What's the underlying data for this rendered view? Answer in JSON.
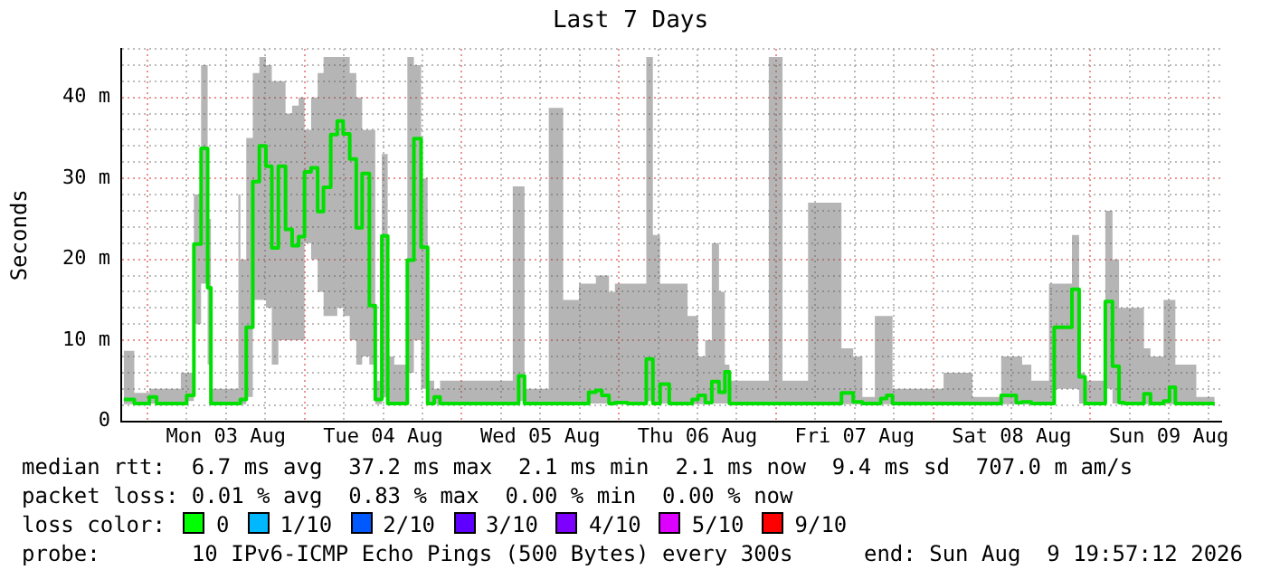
{
  "chart_data": {
    "type": "step",
    "title": "Last 7 Days",
    "ylabel": "Seconds",
    "xlim": [
      "2026-08-02T20:00",
      "2026-08-09T20:00"
    ],
    "xticks": [
      {
        "value": "2026-08-03T00:00",
        "label": null
      },
      {
        "value": "2026-08-03T06:00",
        "label": null
      },
      {
        "value": "2026-08-03T12:00",
        "label": "Mon 03 Aug"
      },
      {
        "value": "2026-08-03T18:00",
        "label": null
      },
      {
        "value": "2026-08-04T00:00",
        "label": null
      },
      {
        "value": "2026-08-04T06:00",
        "label": null
      },
      {
        "value": "2026-08-04T12:00",
        "label": "Tue 04 Aug"
      },
      {
        "value": "2026-08-04T18:00",
        "label": null
      },
      {
        "value": "2026-08-05T00:00",
        "label": null
      },
      {
        "value": "2026-08-05T06:00",
        "label": null
      },
      {
        "value": "2026-08-05T12:00",
        "label": "Wed 05 Aug"
      },
      {
        "value": "2026-08-05T18:00",
        "label": null
      },
      {
        "value": "2026-08-06T00:00",
        "label": null
      },
      {
        "value": "2026-08-06T06:00",
        "label": null
      },
      {
        "value": "2026-08-06T12:00",
        "label": "Thu 06 Aug"
      },
      {
        "value": "2026-08-06T18:00",
        "label": null
      },
      {
        "value": "2026-08-07T00:00",
        "label": null
      },
      {
        "value": "2026-08-07T06:00",
        "label": null
      },
      {
        "value": "2026-08-07T12:00",
        "label": "Fri 07 Aug"
      },
      {
        "value": "2026-08-07T18:00",
        "label": null
      },
      {
        "value": "2026-08-08T00:00",
        "label": null
      },
      {
        "value": "2026-08-08T06:00",
        "label": null
      },
      {
        "value": "2026-08-08T12:00",
        "label": "Sat 08 Aug"
      },
      {
        "value": "2026-08-08T18:00",
        "label": null
      },
      {
        "value": "2026-08-09T00:00",
        "label": null
      },
      {
        "value": "2026-08-09T06:00",
        "label": null
      },
      {
        "value": "2026-08-09T12:00",
        "label": "Sun 09 Aug"
      },
      {
        "value": "2026-08-09T18:00",
        "label": null
      }
    ],
    "ylim": [
      0,
      46
    ],
    "yticks": [
      0,
      {
        "value": 2,
        "label": null
      },
      {
        "value": 4,
        "label": null
      },
      {
        "value": 6,
        "label": null
      },
      {
        "value": 8,
        "label": null
      },
      {
        "value": 10,
        "label": "10 m"
      },
      {
        "value": 12,
        "label": null
      },
      {
        "value": 14,
        "label": null
      },
      {
        "value": 16,
        "label": null
      },
      {
        "value": 18,
        "label": null
      },
      {
        "value": 20,
        "label": "20 m"
      },
      {
        "value": 22,
        "label": null
      },
      {
        "value": 24,
        "label": null
      },
      {
        "value": 26,
        "label": null
      },
      {
        "value": 28,
        "label": null
      },
      {
        "value": 30,
        "label": "30 m"
      },
      {
        "value": 32,
        "label": null
      },
      {
        "value": 34,
        "label": null
      },
      {
        "value": 36,
        "label": null
      },
      {
        "value": 38,
        "label": null
      },
      {
        "value": 40,
        "label": "40 m"
      },
      {
        "value": 42,
        "label": null
      },
      {
        "value": 44,
        "label": null
      },
      {
        "value": 46,
        "label": null
      }
    ],
    "grid": true,
    "legend": false,
    "series": [
      {
        "color": "#00e000",
        "x": [
          "2026-08-02T20:24",
          "2026-08-02T22:00",
          "2026-08-03T00:18",
          "2026-08-03T01:24",
          "2026-08-03T05:06",
          "2026-08-03T06:00",
          "2026-08-03T07:06",
          "2026-08-03T08:12",
          "2026-08-03T09:12",
          "2026-08-03T09:42",
          "2026-08-03T13:54",
          "2026-08-03T14:12",
          "2026-08-03T15:06",
          "2026-08-03T16:06",
          "2026-08-03T17:06",
          "2026-08-03T18:06",
          "2026-08-03T19:00",
          "2026-08-03T20:00",
          "2026-08-03T21:06",
          "2026-08-03T22:06",
          "2026-08-03T23:06",
          "2026-08-04T00:00",
          "2026-08-04T01:00",
          "2026-08-04T02:00",
          "2026-08-04T02:54",
          "2026-08-04T04:00",
          "2026-08-04T05:00",
          "2026-08-04T05:54",
          "2026-08-04T06:54",
          "2026-08-04T07:54",
          "2026-08-04T08:48",
          "2026-08-04T09:54",
          "2026-08-04T10:48",
          "2026-08-04T11:48",
          "2026-08-04T12:42",
          "2026-08-04T13:42",
          "2026-08-04T15:42",
          "2026-08-04T16:42",
          "2026-08-04T17:48",
          "2026-08-04T18:48",
          "2026-08-04T19:48",
          "2026-08-04T20:42",
          "2026-08-05T02:00",
          "2026-08-05T07:48",
          "2026-08-05T08:42",
          "2026-08-05T09:36",
          "2026-08-05T13:18",
          "2026-08-05T15:30",
          "2026-08-05T17:54",
          "2026-08-05T19:24",
          "2026-08-05T20:30",
          "2026-08-05T21:24",
          "2026-08-05T22:30",
          "2026-08-05T23:24",
          "2026-08-06T01:18",
          "2026-08-06T03:36",
          "2026-08-06T04:12",
          "2026-08-06T05:12",
          "2026-08-06T06:18",
          "2026-08-06T07:42",
          "2026-08-06T10:30",
          "2026-08-06T11:12",
          "2026-08-06T12:06",
          "2026-08-06T13:12",
          "2026-08-06T14:12",
          "2026-08-06T15:18",
          "2026-08-06T16:12",
          "2026-08-06T16:54",
          "2026-08-06T22:54",
          "2026-08-07T01:00",
          "2026-08-07T04:54",
          "2026-08-07T08:48",
          "2026-08-07T10:00",
          "2026-08-07T11:48",
          "2026-08-07T13:12",
          "2026-08-07T15:06",
          "2026-08-07T16:00",
          "2026-08-07T16:54",
          "2026-08-07T17:48",
          "2026-08-08T01:36",
          "2026-08-08T06:00",
          "2026-08-08T10:24",
          "2026-08-08T12:42",
          "2026-08-08T13:36",
          "2026-08-08T15:00",
          "2026-08-08T17:42",
          "2026-08-08T18:30",
          "2026-08-08T21:12",
          "2026-08-08T22:18",
          "2026-08-08T23:12",
          "2026-08-09T02:18",
          "2026-08-09T03:24",
          "2026-08-09T04:24",
          "2026-08-09T05:12",
          "2026-08-09T08:12",
          "2026-08-09T09:12",
          "2026-08-09T11:12",
          "2026-08-09T12:06",
          "2026-08-09T13:00",
          "2026-08-09T16:12",
          "2026-08-09T19:00"
        ],
        "values": [
          2.7,
          2.2,
          3,
          2.2,
          2.2,
          3.2,
          21.9,
          33.7,
          16.5,
          2.2,
          2.2,
          2.7,
          11.6,
          29.6,
          34,
          31.5,
          21.4,
          31.5,
          23.7,
          21.7,
          22.8,
          30.8,
          31.3,
          25.9,
          28.9,
          35.4,
          37.1,
          35.5,
          32.4,
          23.9,
          30.6,
          14.3,
          2.7,
          22.9,
          2.2,
          2.2,
          19.9,
          34.9,
          21.5,
          2.2,
          3,
          2.2,
          2.2,
          2.2,
          5.6,
          2.2,
          2.2,
          2.2,
          2.2,
          3.6,
          3.8,
          3.2,
          2.2,
          2.3,
          2.2,
          2.2,
          7.7,
          2.2,
          4.6,
          2.2,
          2.2,
          2.7,
          3.2,
          2.3,
          4.9,
          3.6,
          6.1,
          2.2,
          2.2,
          2.2,
          2.2,
          2.2,
          3.5,
          2.4,
          2.2,
          2.2,
          2.8,
          3.2,
          2.2,
          2.2,
          2.2,
          3.2,
          2.3,
          2.4,
          2.2,
          2.2,
          11.6,
          16.3,
          5.5,
          2.2,
          14.8,
          6.8,
          2.3,
          2.2,
          3.4,
          2.2,
          2.5,
          4.2,
          2.2,
          2.2,
          2.2
        ],
        "lower": [
          2.1,
          2.1,
          2.2,
          2.1,
          2.1,
          2.5,
          12,
          17,
          7,
          2.1,
          2.1,
          2.1,
          3,
          15,
          15,
          14,
          7,
          10,
          10,
          10,
          10,
          22,
          20,
          16,
          13,
          13,
          14,
          13,
          10,
          7,
          8,
          7,
          2.1,
          3,
          2.1,
          2.1,
          6,
          10,
          4,
          2.1,
          2.1,
          2.1,
          2.1,
          2.1,
          2.5,
          2.1,
          2.1,
          2.1,
          2.1,
          2.2,
          2.2,
          2.2,
          2.1,
          2.1,
          2.1,
          2.1,
          2.5,
          2.1,
          2.2,
          2.1,
          2.1,
          2.1,
          2.1,
          2.1,
          2.2,
          2.2,
          2.2,
          2.1,
          2.1,
          2.1,
          2.1,
          2.1,
          2.1,
          2.1,
          2.1,
          2.1,
          2.1,
          2.1,
          2.1,
          2.1,
          2.1,
          2.1,
          2.1,
          2.1,
          2.1,
          2.1,
          4,
          4,
          2.2,
          2.1,
          4,
          2.2,
          2.1,
          2.1,
          2.1,
          2.1,
          2.1,
          2.1,
          2.1,
          2.1,
          2.1
        ],
        "upper": [
          8.7,
          3.5,
          4,
          4,
          6,
          6,
          28,
          44,
          25,
          4,
          28,
          20,
          35,
          43,
          45,
          44,
          42,
          42,
          38,
          39,
          40,
          36,
          40,
          43,
          45,
          45,
          45,
          45,
          43,
          40,
          36,
          36,
          5,
          33,
          8,
          7,
          45,
          44,
          30,
          5,
          4,
          5,
          5,
          29,
          29,
          4,
          38.7,
          15,
          17,
          17,
          18,
          18,
          16,
          17,
          17,
          17,
          45,
          23,
          17,
          17,
          13,
          13,
          8,
          10,
          22,
          16,
          7,
          5,
          45,
          5,
          27,
          27,
          9,
          8,
          3,
          13,
          13,
          13,
          4,
          6,
          3,
          8,
          8,
          7,
          5,
          17,
          17,
          23,
          6,
          5,
          26,
          20,
          14,
          14,
          9,
          8,
          15,
          15,
          7,
          3,
          3
        ]
      }
    ],
    "annotations": [
      "median rtt:  6.7 ms avg  37.2 ms max  2.1 ms min  2.1 ms now  9.4 ms sd  707.0 m am/s",
      "packet loss: 0.01 % avg  0.83 % max  0.00 % min  0.00 % now",
      "loss color:",
      "0",
      "1/10",
      "2/10",
      "3/10",
      "4/10",
      "5/10",
      "9/10",
      "probe:       10 IPv6-ICMP Echo Pings (500 Bytes) every 300s",
      "end: Sun Aug  9 19:57:12 2026"
    ]
  }
}
